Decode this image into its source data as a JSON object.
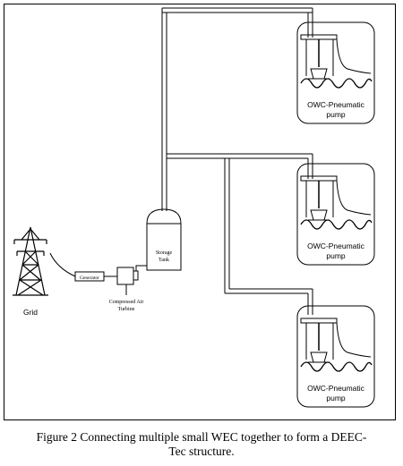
{
  "caption": {
    "line1": "Figure 2 Connecting multiple small WEC together to form a DEEC-",
    "line2": "Tec structure."
  },
  "labels": {
    "grid": "Grid",
    "generator": "Generator",
    "turbine_line1": "Compressed Air",
    "turbine_line2": "Turbine",
    "storage_line1": "Storage",
    "storage_line2": "Tank"
  },
  "pumps": [
    {
      "label_line1": "OWC-Pneumatic",
      "label_line2": "pump"
    },
    {
      "label_line1": "OWC-Pneumatic",
      "label_line2": "pump"
    },
    {
      "label_line1": "OWC-Pneumatic",
      "label_line2": "pump"
    }
  ]
}
